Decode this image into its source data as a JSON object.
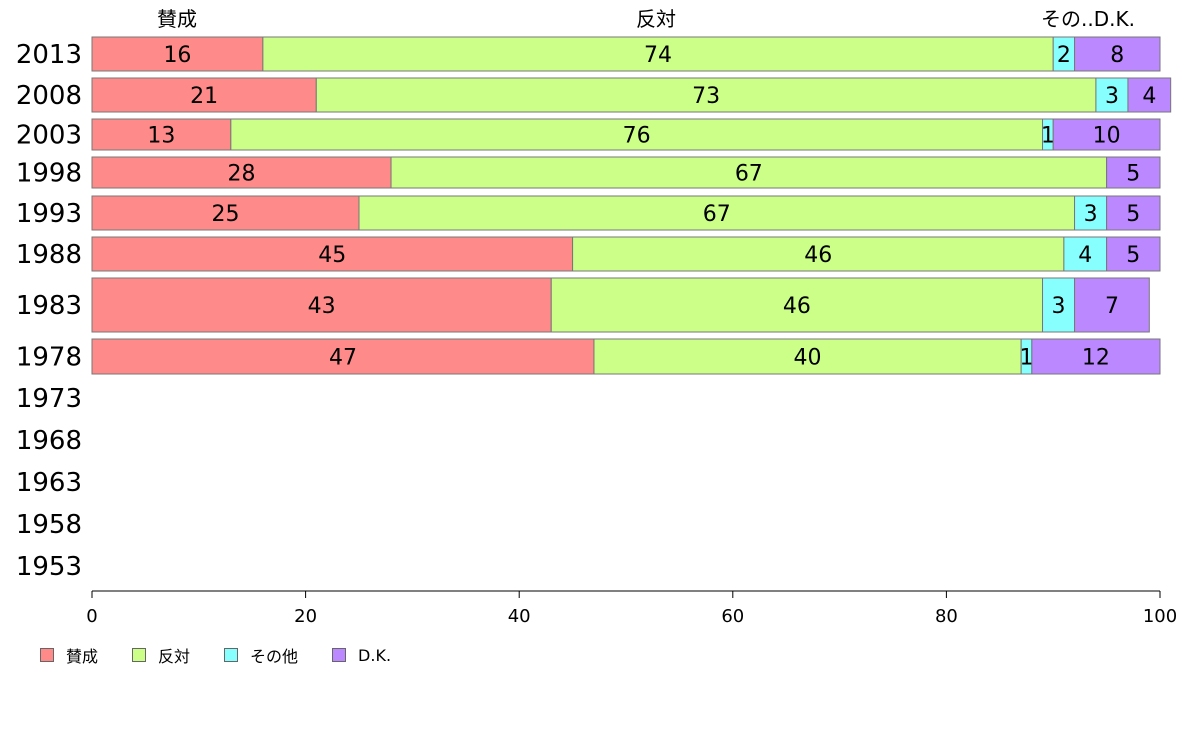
{
  "chart_data": {
    "type": "bar",
    "orientation": "horizontal",
    "stacked": true,
    "categories": [
      "2013",
      "2008",
      "2003",
      "1998",
      "1993",
      "1988",
      "1983",
      "1978",
      "1973",
      "1968",
      "1963",
      "1958",
      "1953"
    ],
    "series": [
      {
        "name": "賛成",
        "color": "#ff8a8a",
        "values": [
          16,
          21,
          13,
          28,
          25,
          45,
          43,
          47,
          null,
          null,
          null,
          null,
          null
        ]
      },
      {
        "name": "反対",
        "color": "#ccff88",
        "values": [
          74,
          73,
          76,
          67,
          67,
          46,
          46,
          40,
          null,
          null,
          null,
          null,
          null
        ]
      },
      {
        "name": "その他",
        "color": "#88ffff",
        "values": [
          2,
          3,
          1,
          0,
          3,
          4,
          3,
          1,
          null,
          null,
          null,
          null,
          null
        ]
      },
      {
        "name": "D.K.",
        "color": "#bb88ff",
        "values": [
          8,
          4,
          10,
          5,
          5,
          5,
          7,
          12,
          null,
          null,
          null,
          null,
          null
        ]
      }
    ],
    "top_labels": [
      "賛成",
      "反対",
      "その..D.K."
    ],
    "xlim": [
      0,
      100
    ],
    "xticks": [
      0,
      20,
      40,
      60,
      80,
      100
    ],
    "grid": false,
    "legend_position": "bottom-left"
  }
}
